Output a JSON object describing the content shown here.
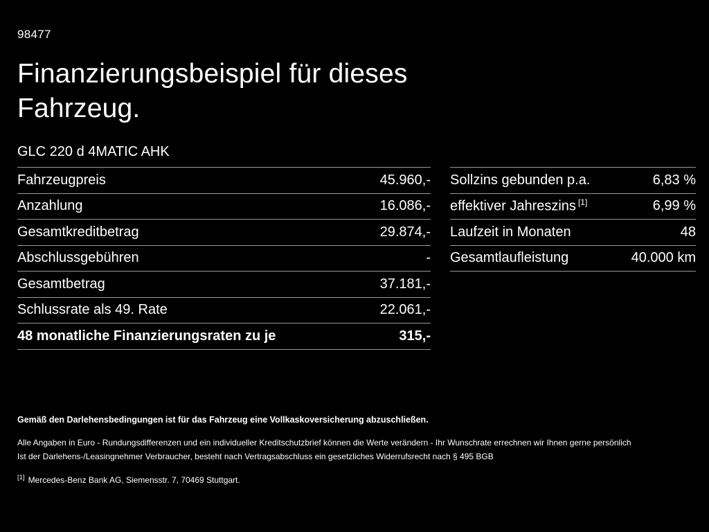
{
  "page": {
    "id_number": "98477",
    "title_line1": "Finanzierungsbeispiel für dieses",
    "title_line2": "Fahrzeug.",
    "vehicle_model": "GLC 220 d 4MATIC AHK"
  },
  "tables": {
    "left": {
      "rows": [
        {
          "label": "Fahrzeugpreis",
          "value": "45.960,-"
        },
        {
          "label": "Anzahlung",
          "value": "16.086,-"
        },
        {
          "label": "Gesamtkreditbetrag",
          "value": "29.874,-"
        },
        {
          "label": "Abschlussgebühren",
          "value": "-"
        },
        {
          "label": "Gesamtbetrag",
          "value": "37.181,-"
        },
        {
          "label": "Schlussrate als 49. Rate",
          "value": "22.061,-"
        },
        {
          "label": "48 monatliche Finanzierungsraten zu je",
          "value": "315,-"
        }
      ]
    },
    "right": {
      "rows": [
        {
          "label": "Sollzins gebunden p.a.",
          "superscript": "",
          "value": "6,83 %"
        },
        {
          "label": "effektiver Jahreszins",
          "superscript": "[1]",
          "value": "6,99 %"
        },
        {
          "label": "Laufzeit in Monaten",
          "superscript": "",
          "value": "48"
        },
        {
          "label": "Gesamtlaufleistung",
          "superscript": "",
          "value": "40.000 km"
        }
      ]
    }
  },
  "footer": {
    "bold_line": "Gemäß den Darlehensbedingungen ist für das Fahrzeug eine Vollkaskoversicherung abzuschließen.",
    "line2": "Alle Angaben in Euro - Rundungsdifferenzen und ein individueller Kreditschutzbrief können die Werte verändern - Ihr Wunschrate errechnen wir Ihnen gerne persönlich",
    "line3": "Ist der Darlehens-/Leasingnehmer Verbraucher, besteht nach Vertragsabschluss ein gesetzliches Widerrufsrecht nach § 495 BGB",
    "footnote_marker": "[1]",
    "footnote_text": "Mercedes-Benz Bank AG, Siemensstr. 7, 70469 Stuttgart."
  },
  "colors": {
    "background": "#000000",
    "text": "#ffffff",
    "divider": "#9a9a9a"
  }
}
